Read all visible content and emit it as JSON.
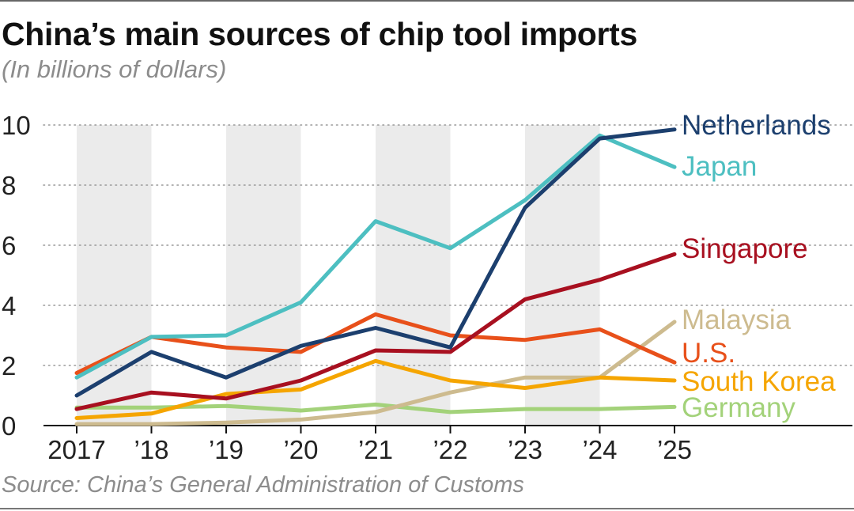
{
  "header": {
    "title": "China’s main sources of chip tool imports",
    "subtitle": "(In billions of dollars)"
  },
  "footer": {
    "source": "Source: China’s General Administration of Customs"
  },
  "chart_data": {
    "type": "line",
    "title": "China’s main sources of chip tool imports",
    "subtitle": "(In billions of dollars)",
    "xlabel": "",
    "ylabel": "",
    "categories": [
      "2017",
      "’18",
      "’19",
      "’20",
      "’21",
      "’22",
      "’23",
      "’24",
      "’25"
    ],
    "ylim": [
      0,
      10
    ],
    "yticks": [
      0,
      2,
      4,
      6,
      8,
      10
    ],
    "grid": "dotted horizontal",
    "shaded_bands": "alternating years (2017, ’19, ’21, ’23)",
    "legend": "labels at right end of each line",
    "series": [
      {
        "name": "Germany",
        "color": "#a3d27a",
        "values": [
          0.6,
          0.6,
          0.65,
          0.5,
          0.7,
          0.45,
          0.55,
          0.55,
          0.62
        ]
      },
      {
        "name": "Malaysia",
        "color": "#cdbb8f",
        "values": [
          0.05,
          0.05,
          0.1,
          0.2,
          0.45,
          1.1,
          1.6,
          1.6,
          3.45
        ]
      },
      {
        "name": "South Korea",
        "color": "#f5a500",
        "values": [
          0.25,
          0.4,
          1.05,
          1.2,
          2.15,
          1.5,
          1.25,
          1.6,
          1.5
        ]
      },
      {
        "name": "U.S.",
        "color": "#e8501a",
        "values": [
          1.75,
          2.95,
          2.6,
          2.45,
          3.7,
          3.0,
          2.85,
          3.2,
          2.1
        ]
      },
      {
        "name": "Singapore",
        "color": "#a81020",
        "values": [
          0.55,
          1.1,
          0.9,
          1.5,
          2.5,
          2.45,
          4.2,
          4.85,
          5.7
        ]
      },
      {
        "name": "Japan",
        "color": "#4dbfc1",
        "values": [
          1.6,
          2.95,
          3.0,
          4.1,
          6.8,
          5.9,
          7.5,
          9.65,
          8.6
        ]
      },
      {
        "name": "Netherlands",
        "color": "#1c3f6e",
        "values": [
          1.0,
          2.45,
          1.6,
          2.65,
          3.25,
          2.6,
          7.25,
          9.55,
          9.85
        ]
      }
    ]
  }
}
